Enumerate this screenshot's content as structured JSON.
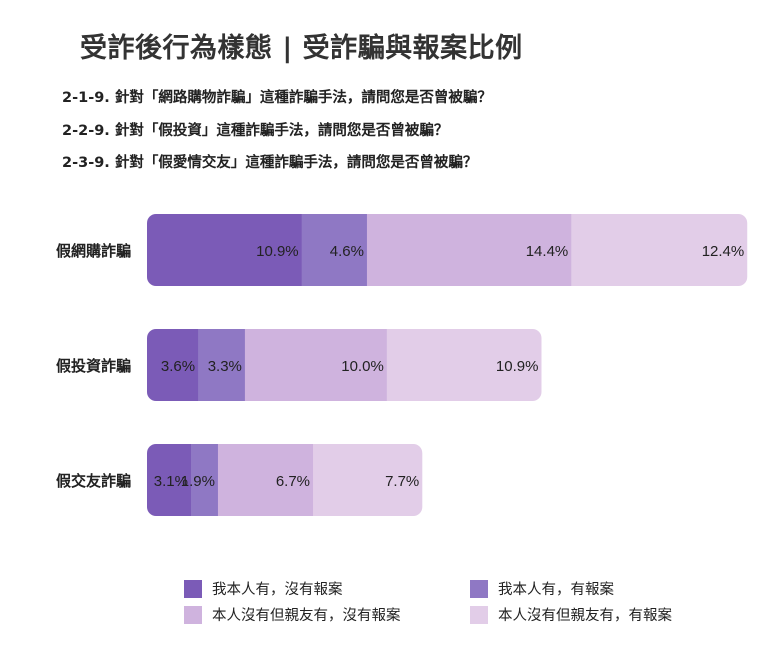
{
  "title": "受詐後行為樣態 | 受詐騙與報案比例",
  "questions": [
    "2-1-9. 針對「網路購物詐騙」這種詐騙手法，請問您是否曾被騙？",
    "2-2-9. 針對「假投資」這種詐騙手法，請問您是否曾被騙？",
    "2-3-9. 針對「假愛情交友」這種詐騙手法，請問您是否曾被騙？"
  ],
  "chart_data": {
    "type": "bar",
    "orientation": "horizontal",
    "stacked": true,
    "categories": [
      "假網購詐騙",
      "假投資詐騙",
      "假交友詐騙"
    ],
    "series": [
      {
        "name": "我本人有，沒有報案",
        "color": "#7b5bb7",
        "values": [
          10.9,
          3.6,
          3.1
        ],
        "labels": [
          "10.9%",
          "3.6%",
          "3.1%"
        ]
      },
      {
        "name": "我本人有，有報案",
        "color": "#8f78c4",
        "values": [
          4.6,
          3.3,
          1.9
        ],
        "labels": [
          "4.6%",
          "3.3%",
          "1.9%"
        ]
      },
      {
        "name": "本人沒有但親友有，沒有報案",
        "color": "#cfb3de",
        "values": [
          14.4,
          10.0,
          6.7
        ],
        "labels": [
          "14.4%",
          "10.0%",
          "6.7%"
        ]
      },
      {
        "name": "本人沒有但親友有，有報案",
        "color": "#e2cde8",
        "values": [
          12.4,
          10.9,
          7.7
        ],
        "labels": [
          "12.4%",
          "10.9%",
          "7.7%"
        ]
      }
    ],
    "legend_position": "bottom",
    "grid": false
  }
}
